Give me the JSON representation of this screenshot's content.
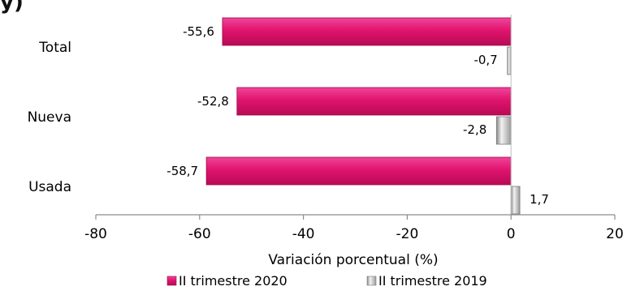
{
  "chart_data": {
    "type": "bar",
    "orientation": "horizontal",
    "categories": [
      "Total",
      "Nueva",
      "Usada"
    ],
    "series": [
      {
        "name": "II trimestre 2020",
        "values": [
          -55.6,
          -52.8,
          -58.7
        ],
        "labels": [
          "-55,6",
          "-52,8",
          "-58,7"
        ],
        "color": "#e0146e"
      },
      {
        "name": "II trimestre 2019",
        "values": [
          -0.7,
          -2.8,
          1.7
        ],
        "labels": [
          "-0,7",
          "-2,8",
          "1,7"
        ],
        "color": "#d9d9d9"
      }
    ],
    "xlim": [
      -80,
      20
    ],
    "xticks": [
      -80,
      -60,
      -40,
      -20,
      0,
      20
    ],
    "xlabel": "Variación  porcentual (%)",
    "legend_position": "bottom",
    "grid": false
  },
  "partial_title": "y)"
}
